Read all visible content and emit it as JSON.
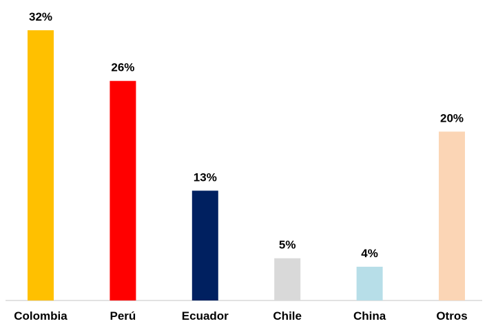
{
  "chart_data": {
    "type": "bar",
    "categories": [
      "Colombia",
      "Perú",
      "Ecuador",
      "Chile",
      "China",
      "Otros"
    ],
    "values": [
      32,
      26,
      13,
      5,
      4,
      20
    ],
    "value_labels": [
      "32%",
      "26%",
      "13%",
      "5%",
      "4%",
      "20%"
    ],
    "colors": [
      "#FFC000",
      "#FF0000",
      "#002060",
      "#D9D9D9",
      "#B7DEE8",
      "#FBD5B5"
    ],
    "title": "",
    "xlabel": "",
    "ylabel": "",
    "ylim": [
      0,
      32
    ],
    "grid": false,
    "legend": "none"
  }
}
